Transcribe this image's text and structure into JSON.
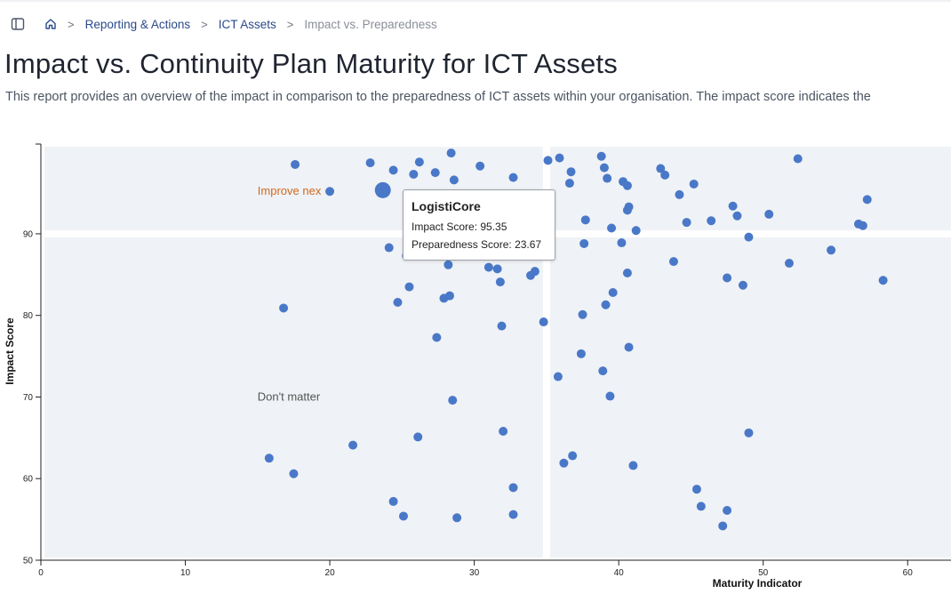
{
  "breadcrumb": {
    "sidebar_toggle": "sidebar-toggle-icon",
    "home": "home-icon",
    "items": [
      {
        "label": "Reporting & Actions"
      },
      {
        "label": "ICT Assets"
      },
      {
        "label": "Impact vs. Preparedness"
      }
    ],
    "separator": ">"
  },
  "page": {
    "title": "Impact vs. Continuity Plan Maturity for ICT Assets",
    "description": "This report provides an overview of the impact in comparison to the preparedness of ICT assets within your organisation. The impact score indicates the"
  },
  "colors": {
    "point": "#4a78c8",
    "quadrant_bg": "#eff2f6",
    "improve_label": "#d2691e",
    "neutral_label": "#555555"
  },
  "chart_data": {
    "type": "scatter",
    "xlabel": "Maturity Indicator",
    "ylabel": "Impact Score",
    "xlim": [
      0,
      63
    ],
    "ylim": [
      50,
      101
    ],
    "xticks": [
      0,
      10,
      20,
      30,
      40,
      50,
      60
    ],
    "yticks": [
      50,
      60,
      70,
      80,
      90
    ],
    "thresholds": {
      "x": 35,
      "y": 90
    },
    "quadrant_labels": [
      {
        "text": "Improve nex",
        "x": 15,
        "y": 95.2,
        "style": "improve"
      },
      {
        "text": "Don't matter",
        "x": 15,
        "y": 70,
        "style": "neutral"
      }
    ],
    "highlighted": {
      "name": "LogistiCore",
      "x": 23.67,
      "y": 95.35
    },
    "tooltip": {
      "title": "LogistiCore",
      "impact_label": "Impact Score: 95.35",
      "preparedness_label": "Preparedness Score: 23.67"
    },
    "points": [
      [
        17.6,
        98.5
      ],
      [
        20.0,
        95.2
      ],
      [
        22.8,
        98.7
      ],
      [
        24.4,
        97.8
      ],
      [
        25.8,
        97.3
      ],
      [
        26.2,
        98.8
      ],
      [
        27.3,
        97.5
      ],
      [
        28.4,
        99.9
      ],
      [
        28.6,
        96.6
      ],
      [
        30.4,
        98.3
      ],
      [
        32.7,
        96.9
      ],
      [
        35.1,
        99.0
      ],
      [
        35.9,
        99.3
      ],
      [
        36.6,
        96.2
      ],
      [
        36.7,
        97.6
      ],
      [
        38.8,
        99.5
      ],
      [
        39.0,
        98.1
      ],
      [
        39.2,
        96.8
      ],
      [
        40.3,
        96.4
      ],
      [
        40.6,
        95.9
      ],
      [
        42.9,
        98.0
      ],
      [
        43.2,
        97.2
      ],
      [
        44.2,
        94.8
      ],
      [
        45.2,
        96.1
      ],
      [
        52.4,
        99.2
      ],
      [
        57.2,
        94.2
      ],
      [
        37.7,
        91.7
      ],
      [
        39.5,
        90.7
      ],
      [
        40.7,
        93.3
      ],
      [
        40.6,
        92.9
      ],
      [
        41.2,
        90.4
      ],
      [
        44.7,
        91.4
      ],
      [
        46.4,
        91.6
      ],
      [
        47.9,
        93.4
      ],
      [
        48.2,
        92.2
      ],
      [
        50.4,
        92.4
      ],
      [
        56.6,
        91.2
      ],
      [
        56.9,
        91.0
      ],
      [
        24.1,
        88.3
      ],
      [
        25.3,
        87.3
      ],
      [
        28.2,
        86.2
      ],
      [
        31.0,
        85.9
      ],
      [
        31.6,
        85.7
      ],
      [
        31.8,
        84.1
      ],
      [
        33.9,
        84.9
      ],
      [
        34.2,
        85.4
      ],
      [
        37.6,
        88.8
      ],
      [
        40.2,
        88.9
      ],
      [
        40.6,
        85.2
      ],
      [
        43.8,
        86.6
      ],
      [
        47.5,
        84.6
      ],
      [
        48.6,
        83.7
      ],
      [
        49.0,
        89.6
      ],
      [
        51.8,
        86.4
      ],
      [
        54.7,
        88.0
      ],
      [
        58.3,
        84.3
      ],
      [
        25.5,
        83.5
      ],
      [
        24.7,
        81.6
      ],
      [
        27.9,
        82.1
      ],
      [
        28.3,
        82.4
      ],
      [
        16.8,
        80.9
      ],
      [
        31.9,
        78.7
      ],
      [
        34.8,
        79.2
      ],
      [
        37.5,
        80.1
      ],
      [
        39.1,
        81.3
      ],
      [
        39.6,
        82.8
      ],
      [
        27.4,
        77.3
      ],
      [
        40.7,
        76.1
      ],
      [
        37.4,
        75.3
      ],
      [
        35.8,
        72.5
      ],
      [
        38.9,
        73.2
      ],
      [
        39.4,
        70.1
      ],
      [
        28.5,
        69.6
      ],
      [
        32.0,
        65.8
      ],
      [
        26.1,
        65.1
      ],
      [
        21.6,
        64.1
      ],
      [
        15.8,
        62.5
      ],
      [
        17.5,
        60.6
      ],
      [
        36.2,
        61.9
      ],
      [
        36.8,
        62.8
      ],
      [
        41.0,
        61.6
      ],
      [
        49.0,
        65.6
      ],
      [
        32.7,
        58.9
      ],
      [
        24.4,
        57.2
      ],
      [
        25.1,
        55.4
      ],
      [
        28.8,
        55.2
      ],
      [
        32.7,
        55.6
      ],
      [
        45.4,
        58.7
      ],
      [
        45.7,
        56.6
      ],
      [
        47.5,
        56.1
      ],
      [
        47.2,
        54.2
      ]
    ]
  }
}
